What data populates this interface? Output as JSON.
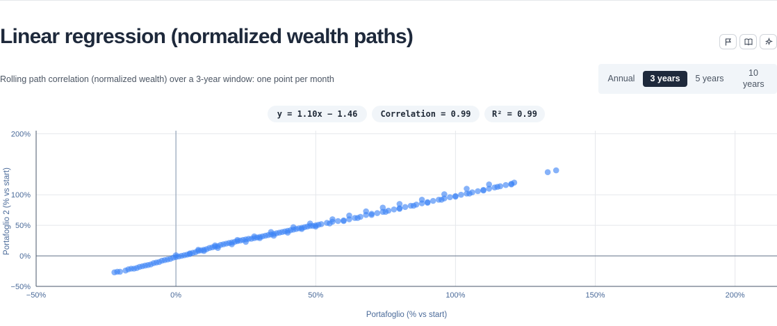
{
  "header": {
    "title": "Linear regression (normalized wealth paths)",
    "subtitle": "Rolling path correlation (normalized wealth) over a 3-year window: one point per month",
    "icons": [
      "flag-icon",
      "book-icon",
      "sparkle-icon"
    ]
  },
  "window_toggle": {
    "options": [
      "Annual",
      "3 years",
      "5 years",
      "10 years"
    ],
    "selected": "3 years"
  },
  "stats": {
    "equation": "y = 1.10x − 1.46",
    "correlation": "Correlation = 0.99",
    "r2": "R² = 0.99"
  },
  "colors": {
    "accent": "#1e293b",
    "points": "#3b82f6",
    "axis_text": "#4a6a99"
  },
  "chart_data": {
    "type": "scatter",
    "title": "",
    "xlabel": "Portafoglio (% vs start)",
    "ylabel": "Portafoglio 2 (% vs start)",
    "xlim": [
      -50,
      215
    ],
    "ylim": [
      -50,
      205
    ],
    "xticks": [
      -50,
      0,
      50,
      100,
      150,
      200
    ],
    "xtick_labels": [
      "−50%",
      "0%",
      "50%",
      "100%",
      "150%",
      "200%"
    ],
    "yticks": [
      -50,
      0,
      50,
      100,
      200
    ],
    "ytick_labels": [
      "−50%",
      "0%",
      "50%",
      "100%",
      "200%"
    ],
    "grid": true,
    "regression": {
      "slope": 1.1,
      "intercept": -1.46
    },
    "points": [
      [
        -22,
        -27
      ],
      [
        -21,
        -26
      ],
      [
        -20,
        -26
      ],
      [
        -18,
        -24
      ],
      [
        -17,
        -22
      ],
      [
        -16,
        -21
      ],
      [
        -15,
        -21
      ],
      [
        -14,
        -20
      ],
      [
        -13,
        -18
      ],
      [
        -12,
        -17
      ],
      [
        -11,
        -16
      ],
      [
        -10,
        -15
      ],
      [
        -9,
        -14
      ],
      [
        -8,
        -12
      ],
      [
        -7,
        -11
      ],
      [
        -6,
        -10
      ],
      [
        -5,
        -8
      ],
      [
        -4,
        -7
      ],
      [
        -3,
        -6
      ],
      [
        -2,
        -5
      ],
      [
        -1,
        -3
      ],
      [
        0,
        -2
      ],
      [
        0,
        1
      ],
      [
        1,
        -1
      ],
      [
        2,
        0
      ],
      [
        3,
        1
      ],
      [
        4,
        2
      ],
      [
        5,
        4
      ],
      [
        6,
        5
      ],
      [
        7,
        6
      ],
      [
        8,
        8
      ],
      [
        9,
        9
      ],
      [
        10,
        10
      ],
      [
        11,
        11
      ],
      [
        12,
        13
      ],
      [
        13,
        14
      ],
      [
        14,
        15
      ],
      [
        15,
        16
      ],
      [
        16,
        18
      ],
      [
        17,
        19
      ],
      [
        18,
        20
      ],
      [
        19,
        21
      ],
      [
        20,
        22
      ],
      [
        21,
        23
      ],
      [
        22,
        24
      ],
      [
        23,
        25
      ],
      [
        24,
        26
      ],
      [
        25,
        27
      ],
      [
        26,
        28
      ],
      [
        27,
        28
      ],
      [
        28,
        29
      ],
      [
        29,
        30
      ],
      [
        30,
        31
      ],
      [
        31,
        32
      ],
      [
        32,
        33
      ],
      [
        33,
        34
      ],
      [
        34,
        35
      ],
      [
        35,
        36
      ],
      [
        36,
        37
      ],
      [
        37,
        38
      ],
      [
        38,
        39
      ],
      [
        39,
        40
      ],
      [
        40,
        41
      ],
      [
        41,
        42
      ],
      [
        42,
        43
      ],
      [
        43,
        44
      ],
      [
        44,
        45
      ],
      [
        45,
        46
      ],
      [
        46,
        47
      ],
      [
        47,
        48
      ],
      [
        48,
        49
      ],
      [
        49,
        49
      ],
      [
        50,
        50
      ],
      [
        51,
        51
      ],
      [
        52,
        52
      ],
      [
        54,
        54
      ],
      [
        56,
        56
      ],
      [
        58,
        57
      ],
      [
        60,
        58
      ],
      [
        62,
        60
      ],
      [
        64,
        62
      ],
      [
        66,
        64
      ],
      [
        68,
        67
      ],
      [
        70,
        69
      ],
      [
        72,
        70
      ],
      [
        74,
        72
      ],
      [
        76,
        74
      ],
      [
        78,
        76
      ],
      [
        80,
        78
      ],
      [
        82,
        80
      ],
      [
        84,
        82
      ],
      [
        86,
        84
      ],
      [
        88,
        86
      ],
      [
        90,
        88
      ],
      [
        92,
        90
      ],
      [
        94,
        92
      ],
      [
        96,
        94
      ],
      [
        98,
        96
      ],
      [
        100,
        98
      ],
      [
        102,
        100
      ],
      [
        104,
        102
      ],
      [
        106,
        104
      ],
      [
        108,
        106
      ],
      [
        110,
        108
      ],
      [
        112,
        110
      ],
      [
        114,
        112
      ],
      [
        116,
        114
      ],
      [
        118,
        116
      ],
      [
        120,
        118
      ],
      [
        121,
        120
      ],
      [
        133,
        137
      ],
      [
        136,
        140
      ],
      [
        5,
        3
      ],
      [
        10,
        8
      ],
      [
        15,
        13
      ],
      [
        20,
        19
      ],
      [
        25,
        23
      ],
      [
        30,
        29
      ],
      [
        35,
        33
      ],
      [
        40,
        38
      ],
      [
        45,
        44
      ],
      [
        50,
        48
      ],
      [
        55,
        53
      ],
      [
        60,
        57
      ],
      [
        65,
        62
      ],
      [
        70,
        67
      ],
      [
        75,
        72
      ],
      [
        80,
        77
      ],
      [
        85,
        82
      ],
      [
        90,
        87
      ],
      [
        95,
        92
      ],
      [
        100,
        97
      ],
      [
        105,
        102
      ],
      [
        110,
        107
      ],
      [
        115,
        113
      ],
      [
        120,
        117
      ],
      [
        8,
        10
      ],
      [
        14,
        17
      ],
      [
        22,
        26
      ],
      [
        28,
        32
      ],
      [
        34,
        39
      ],
      [
        42,
        47
      ],
      [
        48,
        53
      ],
      [
        56,
        60
      ],
      [
        62,
        66
      ],
      [
        68,
        73
      ],
      [
        74,
        79
      ],
      [
        80,
        85
      ],
      [
        88,
        92
      ],
      [
        96,
        101
      ],
      [
        104,
        110
      ],
      [
        112,
        117
      ]
    ]
  }
}
